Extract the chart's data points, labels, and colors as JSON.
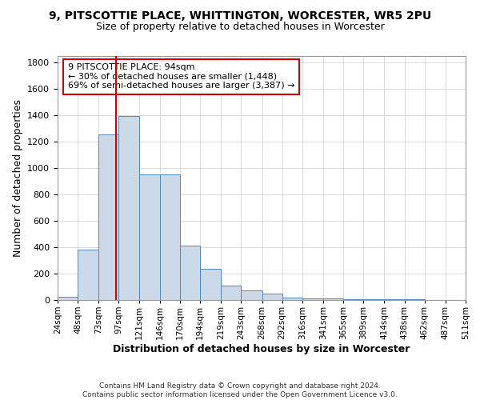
{
  "title1": "9, PITSCOTTIE PLACE, WHITTINGTON, WORCESTER, WR5 2PU",
  "title2": "Size of property relative to detached houses in Worcester",
  "xlabel": "Distribution of detached houses by size in Worcester",
  "ylabel": "Number of detached properties",
  "footer1": "Contains HM Land Registry data © Crown copyright and database right 2024.",
  "footer2": "Contains public sector information licensed under the Open Government Licence v3.0.",
  "annotation_line1": "9 PITSCOTTIE PLACE: 94sqm",
  "annotation_line2": "← 30% of detached houses are smaller (1,448)",
  "annotation_line3": "69% of semi-detached houses are larger (3,387) →",
  "property_size": 94,
  "bin_edges": [
    24,
    48,
    73,
    97,
    121,
    146,
    170,
    194,
    219,
    243,
    268,
    292,
    316,
    341,
    365,
    389,
    414,
    438,
    462,
    487,
    511
  ],
  "bar_values": [
    25,
    380,
    1255,
    1395,
    955,
    950,
    415,
    235,
    110,
    70,
    50,
    20,
    15,
    10,
    5,
    5,
    5,
    5,
    3,
    3
  ],
  "bar_color": "#ccd9e8",
  "bar_edge_color": "#5588bb",
  "vline_color": "#cc0000",
  "annotation_box_edge": "#cc0000",
  "ylim": [
    0,
    1850
  ],
  "yticks": [
    0,
    200,
    400,
    600,
    800,
    1000,
    1200,
    1400,
    1600,
    1800
  ],
  "grid_color": "#cccccc",
  "bg_color": "#ffffff"
}
